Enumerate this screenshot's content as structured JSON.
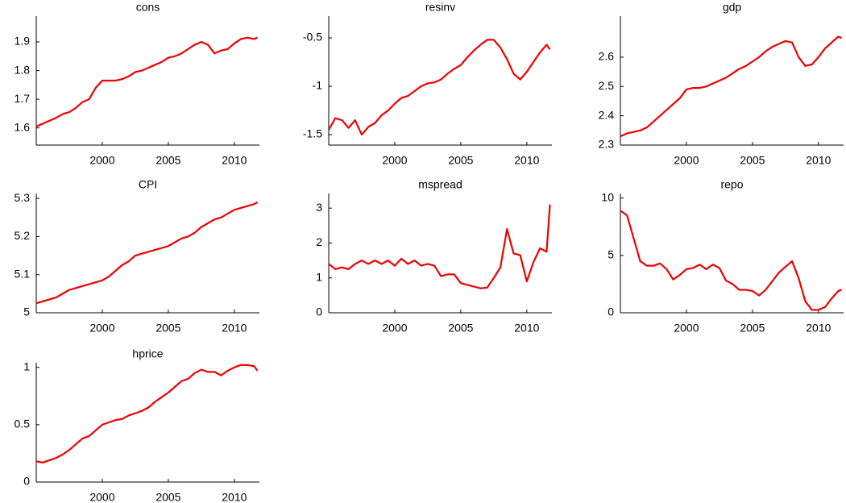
{
  "chart_data": [
    {
      "type": "line",
      "title": "cons",
      "color": "#ee0000",
      "x": [
        1995,
        1995.5,
        1996,
        1996.5,
        1997,
        1997.5,
        1998,
        1998.5,
        1999,
        1999.5,
        2000,
        2000.5,
        2001,
        2001.5,
        2002,
        2002.5,
        2003,
        2003.5,
        2004,
        2004.5,
        2005,
        2005.5,
        2006,
        2006.5,
        2007,
        2007.5,
        2008,
        2008.5,
        2009,
        2009.5,
        2010,
        2010.5,
        2011,
        2011.5,
        2011.75
      ],
      "values": [
        1.605,
        1.615,
        1.625,
        1.635,
        1.648,
        1.655,
        1.67,
        1.69,
        1.7,
        1.74,
        1.765,
        1.765,
        1.765,
        1.77,
        1.78,
        1.795,
        1.8,
        1.81,
        1.82,
        1.83,
        1.845,
        1.85,
        1.86,
        1.875,
        1.89,
        1.9,
        1.89,
        1.86,
        1.87,
        1.875,
        1.895,
        1.91,
        1.915,
        1.91,
        1.915
      ],
      "xlim": [
        1995,
        2011.9
      ],
      "xticks": [
        2000,
        2005,
        2010
      ],
      "ylim": [
        1.54,
        1.99
      ],
      "yticks": [
        1.6,
        1.7,
        1.8,
        1.9
      ]
    },
    {
      "type": "line",
      "title": "resinv",
      "color": "#ee0000",
      "x": [
        1995,
        1995.5,
        1996,
        1996.5,
        1997,
        1997.5,
        1998,
        1998.5,
        1999,
        1999.5,
        2000,
        2000.5,
        2001,
        2001.5,
        2002,
        2002.5,
        2003,
        2003.5,
        2004,
        2004.5,
        2005,
        2005.5,
        2006,
        2006.5,
        2007,
        2007.5,
        2008,
        2008.5,
        2009,
        2009.5,
        2010,
        2010.5,
        2011,
        2011.5,
        2011.75
      ],
      "values": [
        -1.45,
        -1.33,
        -1.35,
        -1.43,
        -1.35,
        -1.5,
        -1.42,
        -1.38,
        -1.3,
        -1.25,
        -1.18,
        -1.12,
        -1.1,
        -1.05,
        -1.0,
        -0.97,
        -0.96,
        -0.93,
        -0.87,
        -0.82,
        -0.78,
        -0.7,
        -0.63,
        -0.57,
        -0.52,
        -0.52,
        -0.6,
        -0.72,
        -0.87,
        -0.93,
        -0.85,
        -0.75,
        -0.65,
        -0.57,
        -0.62
      ],
      "xlim": [
        1995,
        2011.9
      ],
      "xticks": [
        2000,
        2005,
        2010
      ],
      "ylim": [
        -1.608,
        -0.275
      ],
      "yticks": [
        -1.5,
        -1,
        -0.5
      ]
    },
    {
      "type": "line",
      "title": "gdp",
      "color": "#ee0000",
      "x": [
        1995,
        1995.5,
        1996,
        1996.5,
        1997,
        1997.5,
        1998,
        1998.5,
        1999,
        1999.5,
        2000,
        2000.5,
        2001,
        2001.5,
        2002,
        2002.5,
        2003,
        2003.5,
        2004,
        2004.5,
        2005,
        2005.5,
        2006,
        2006.5,
        2007,
        2007.5,
        2008,
        2008.5,
        2009,
        2009.5,
        2010,
        2010.5,
        2011,
        2011.5,
        2011.75
      ],
      "values": [
        2.33,
        2.34,
        2.345,
        2.35,
        2.36,
        2.38,
        2.4,
        2.42,
        2.44,
        2.46,
        2.49,
        2.495,
        2.495,
        2.5,
        2.51,
        2.52,
        2.53,
        2.545,
        2.56,
        2.57,
        2.585,
        2.6,
        2.62,
        2.635,
        2.645,
        2.655,
        2.65,
        2.6,
        2.57,
        2.575,
        2.6,
        2.63,
        2.65,
        2.67,
        2.665
      ],
      "xlim": [
        1995,
        2011.9
      ],
      "xticks": [
        2000,
        2005,
        2010
      ],
      "ylim": [
        2.3,
        2.74
      ],
      "yticks": [
        2.3,
        2.4,
        2.5,
        2.6
      ]
    },
    {
      "type": "line",
      "title": "CPI",
      "color": "#ee0000",
      "x": [
        1995,
        1995.5,
        1996,
        1996.5,
        1997,
        1997.5,
        1998,
        1998.5,
        1999,
        1999.5,
        2000,
        2000.5,
        2001,
        2001.5,
        2002,
        2002.5,
        2003,
        2003.5,
        2004,
        2004.5,
        2005,
        2005.5,
        2006,
        2006.5,
        2007,
        2007.5,
        2008,
        2008.5,
        2009,
        2009.5,
        2010,
        2010.5,
        2011,
        2011.5,
        2011.75
      ],
      "values": [
        5.025,
        5.03,
        5.035,
        5.04,
        5.05,
        5.06,
        5.065,
        5.07,
        5.075,
        5.08,
        5.085,
        5.095,
        5.11,
        5.125,
        5.135,
        5.15,
        5.155,
        5.16,
        5.165,
        5.17,
        5.175,
        5.185,
        5.195,
        5.2,
        5.21,
        5.225,
        5.235,
        5.245,
        5.25,
        5.26,
        5.27,
        5.275,
        5.28,
        5.285,
        5.29
      ],
      "xlim": [
        1995,
        2011.9
      ],
      "xticks": [
        2000,
        2005,
        2010
      ],
      "ylim": [
        5,
        5.313
      ],
      "yticks": [
        5,
        5.1,
        5.2,
        5.3
      ]
    },
    {
      "type": "line",
      "title": "mspread",
      "color": "#ee0000",
      "x": [
        1995,
        1995.5,
        1996,
        1996.5,
        1997,
        1997.5,
        1998,
        1998.5,
        1999,
        1999.5,
        2000,
        2000.5,
        2001,
        2001.5,
        2002,
        2002.5,
        2003,
        2003.5,
        2004,
        2004.5,
        2005,
        2005.5,
        2006,
        2006.5,
        2007,
        2007.5,
        2008,
        2008.5,
        2009,
        2009.5,
        2010,
        2010.5,
        2011,
        2011.5,
        2011.75
      ],
      "values": [
        1.4,
        1.25,
        1.3,
        1.25,
        1.4,
        1.5,
        1.4,
        1.5,
        1.4,
        1.5,
        1.35,
        1.55,
        1.4,
        1.5,
        1.35,
        1.4,
        1.35,
        1.05,
        1.1,
        1.1,
        0.85,
        0.8,
        0.75,
        0.7,
        0.72,
        1.0,
        1.3,
        2.4,
        1.7,
        1.65,
        0.9,
        1.45,
        1.85,
        1.75,
        3.1
      ],
      "xlim": [
        1995,
        2011.9
      ],
      "xticks": [
        2000,
        2005,
        2010
      ],
      "ylim": [
        0,
        3.42
      ],
      "yticks": [
        0,
        1,
        2,
        3
      ]
    },
    {
      "type": "line",
      "title": "repo",
      "color": "#ee0000",
      "x": [
        1995,
        1995.5,
        1996,
        1996.5,
        1997,
        1997.5,
        1998,
        1998.5,
        1999,
        1999.5,
        2000,
        2000.5,
        2001,
        2001.5,
        2002,
        2002.5,
        2003,
        2003.5,
        2004,
        2004.5,
        2005,
        2005.5,
        2006,
        2006.5,
        2007,
        2007.5,
        2008,
        2008.5,
        2009,
        2009.5,
        2010,
        2010.5,
        2011,
        2011.5,
        2011.75
      ],
      "values": [
        8.9,
        8.5,
        6.5,
        4.5,
        4.1,
        4.1,
        4.3,
        3.8,
        2.9,
        3.3,
        3.8,
        3.9,
        4.2,
        3.8,
        4.2,
        3.9,
        2.8,
        2.5,
        2.0,
        2.0,
        1.9,
        1.5,
        2.0,
        2.75,
        3.5,
        4.0,
        4.5,
        3.0,
        1.0,
        0.25,
        0.25,
        0.5,
        1.25,
        1.9,
        2.0
      ],
      "xlim": [
        1995,
        2011.9
      ],
      "xticks": [
        2000,
        2005,
        2010
      ],
      "ylim": [
        0,
        10.4
      ],
      "yticks": [
        0,
        5,
        10
      ]
    },
    {
      "type": "line",
      "title": "hprice",
      "color": "#ee0000",
      "x": [
        1995,
        1995.5,
        1996,
        1996.5,
        1997,
        1997.5,
        1998,
        1998.5,
        1999,
        1999.5,
        2000,
        2000.5,
        2001,
        2001.5,
        2002,
        2002.5,
        2003,
        2003.5,
        2004,
        2004.5,
        2005,
        2005.5,
        2006,
        2006.5,
        2007,
        2007.5,
        2008,
        2008.5,
        2009,
        2009.5,
        2010,
        2010.5,
        2011,
        2011.5,
        2011.75
      ],
      "values": [
        0.18,
        0.17,
        0.19,
        0.21,
        0.24,
        0.28,
        0.33,
        0.38,
        0.4,
        0.45,
        0.5,
        0.52,
        0.54,
        0.55,
        0.58,
        0.6,
        0.62,
        0.65,
        0.7,
        0.74,
        0.78,
        0.83,
        0.88,
        0.9,
        0.95,
        0.98,
        0.96,
        0.96,
        0.93,
        0.97,
        1.0,
        1.02,
        1.02,
        1.01,
        0.97
      ],
      "xlim": [
        1995,
        2011.9
      ],
      "xticks": [
        2000,
        2005,
        2010
      ],
      "ylim": [
        0,
        1.04
      ],
      "yticks": [
        0,
        0.5,
        1
      ]
    }
  ]
}
